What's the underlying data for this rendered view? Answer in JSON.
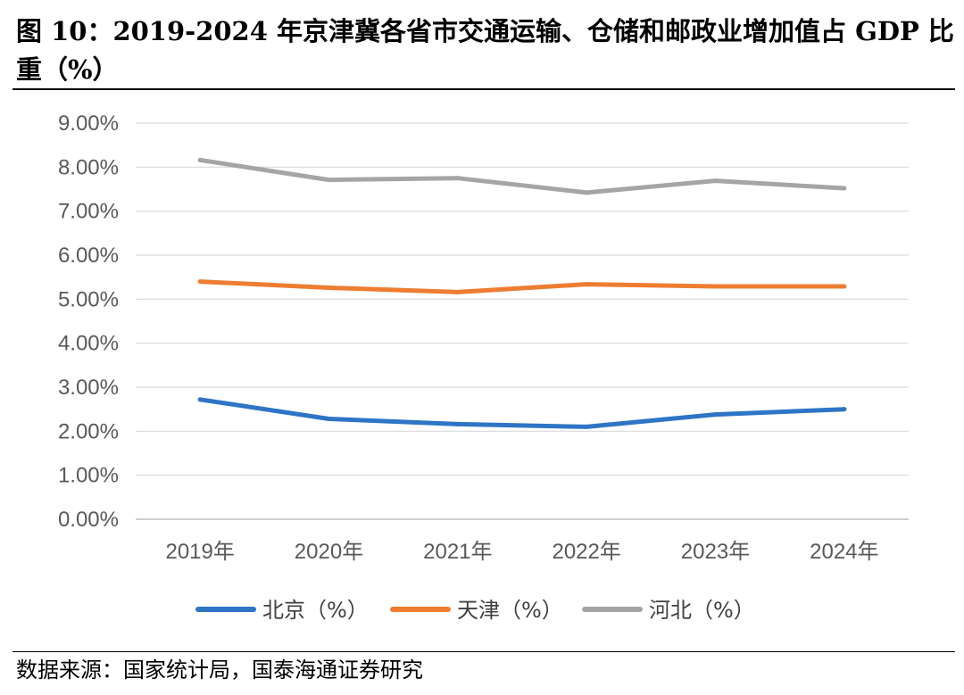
{
  "figure": {
    "title": "图 10：2019-2024 年京津冀各省市交通运输、仓储和邮政业增加值占 GDP 比重（%）",
    "source": "数据来源：国家统计局，国泰海通证券研究"
  },
  "chart_data": {
    "type": "line",
    "title": "图 10：2019-2024 年京津冀各省市交通运输、仓储和邮政业增加值占 GDP 比重（%）",
    "xlabel": "",
    "ylabel": "",
    "categories": [
      "2019年",
      "2020年",
      "2021年",
      "2022年",
      "2023年",
      "2024年"
    ],
    "ylim": [
      0,
      9
    ],
    "yticks": [
      "0.00%",
      "1.00%",
      "2.00%",
      "3.00%",
      "4.00%",
      "5.00%",
      "6.00%",
      "7.00%",
      "8.00%",
      "9.00%"
    ],
    "grid": true,
    "legend_position": "bottom",
    "series": [
      {
        "name": "北京（%）",
        "color": "#2E75C6",
        "values": [
          2.72,
          2.28,
          2.16,
          2.1,
          2.38,
          2.5
        ]
      },
      {
        "name": "天津（%）",
        "color": "#ED7D31",
        "values": [
          5.4,
          5.26,
          5.16,
          5.34,
          5.29,
          5.29
        ]
      },
      {
        "name": "河北（%）",
        "color": "#A5A5A5",
        "values": [
          8.16,
          7.71,
          7.75,
          7.42,
          7.69,
          7.52
        ]
      }
    ]
  }
}
